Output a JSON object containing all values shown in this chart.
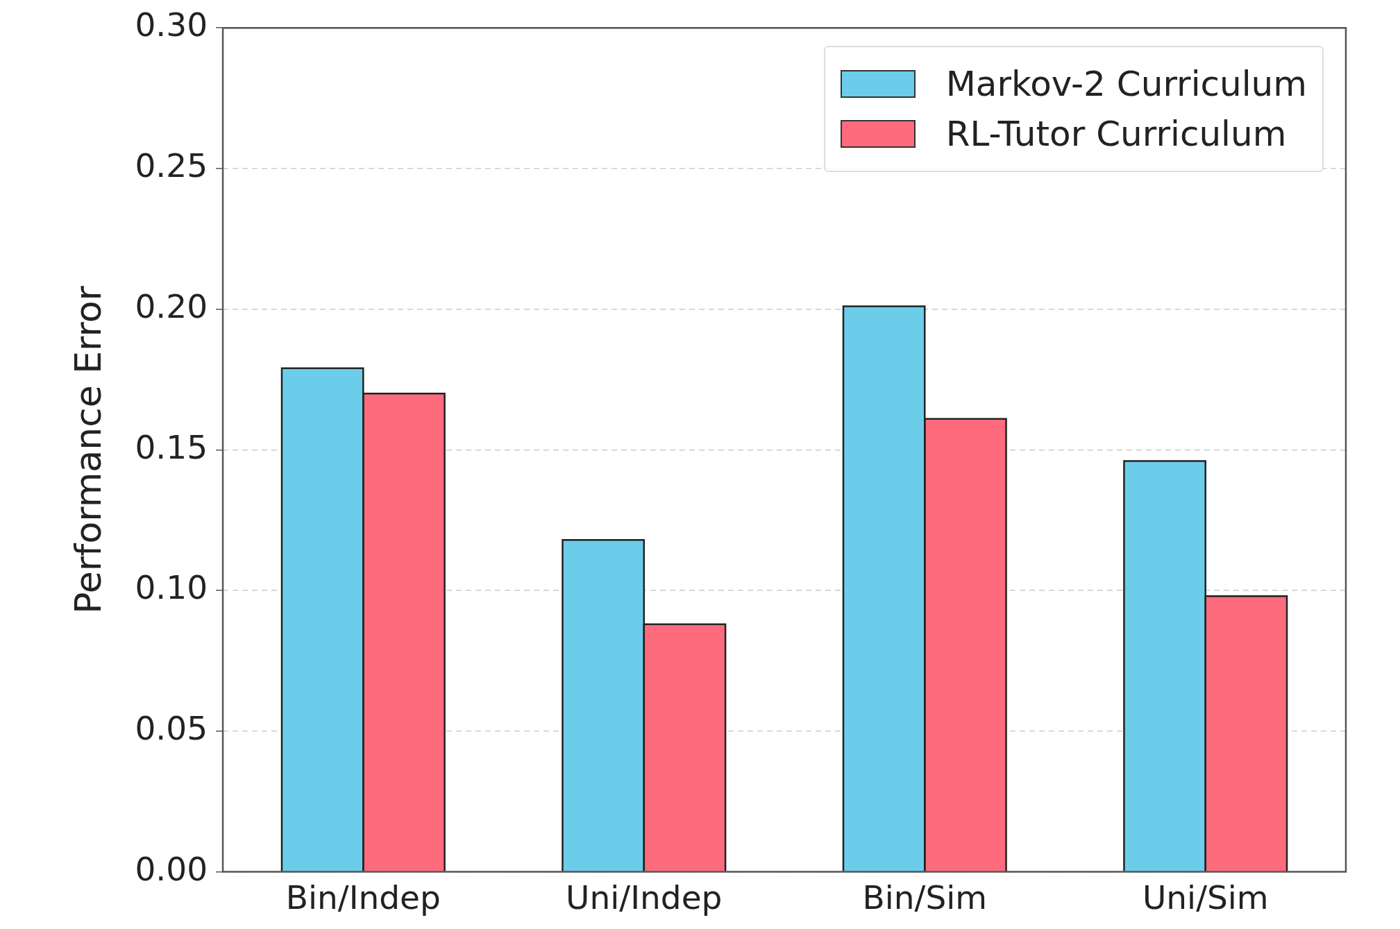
{
  "chart_data": {
    "type": "bar",
    "ylabel": "Performance Error",
    "categories": [
      "Bin/Indep",
      "Uni/Indep",
      "Bin/Sim",
      "Uni/Sim"
    ],
    "series": [
      {
        "name": "Markov-2 Curriculum",
        "color": "#6bcde9",
        "values": [
          0.179,
          0.118,
          0.201,
          0.146
        ]
      },
      {
        "name": "RL-Tutor Curriculum",
        "color": "#fd6b7d",
        "values": [
          0.17,
          0.088,
          0.161,
          0.098
        ]
      }
    ],
    "ylim": [
      0,
      0.3
    ],
    "yticks": [
      {
        "value": 0,
        "label": "0.00"
      },
      0.05,
      {
        "value": 0.1,
        "label": "0.10"
      },
      0.15,
      {
        "value": 0.2,
        "label": "0.20"
      },
      0.25,
      {
        "value": 0.3,
        "label": "0.30"
      }
    ],
    "grid": "y",
    "legend": "top right"
  }
}
